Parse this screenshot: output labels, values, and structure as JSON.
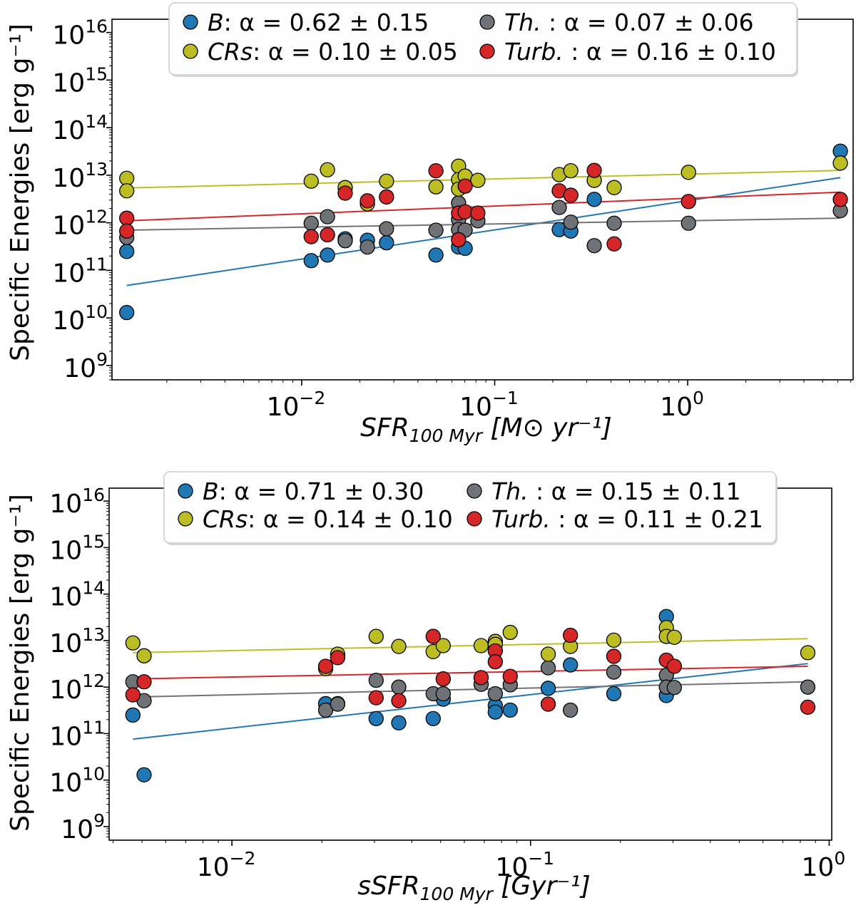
{
  "colors": {
    "B": "#1f77b4",
    "Th": "#6f7378",
    "CRs": "#bcbd22",
    "Turb": "#d62728"
  },
  "chart_data": [
    {
      "type": "scatter",
      "x_scale": "log",
      "y_scale": "log",
      "xlabel": {
        "main": "SFR",
        "subscript": "100 Myr",
        "units": "[M⊙ yr⁻¹]"
      },
      "ylabel": "Specific Energies [erg g⁻¹]",
      "xlim": [
        0.00104,
        7.2
      ],
      "ylim": [
        500000000.0,
        1.9e+16
      ],
      "x_ticks": [
        0.01,
        0.1,
        1
      ],
      "x_tick_labels": [
        {
          "base": "10",
          "exp": "−2"
        },
        {
          "base": "10",
          "exp": "−1"
        },
        {
          "base": "10",
          "exp": "0"
        }
      ],
      "y_ticks": [
        1000000000.0,
        10000000000.0,
        100000000000.0,
        1000000000000.0,
        10000000000000.0,
        100000000000000.0,
        1000000000000000.0,
        1e+16
      ],
      "y_tick_labels": [
        {
          "base": "10",
          "exp": "9"
        },
        {
          "base": "10",
          "exp": "10"
        },
        {
          "base": "10",
          "exp": "11"
        },
        {
          "base": "10",
          "exp": "12"
        },
        {
          "base": "10",
          "exp": "13"
        },
        {
          "base": "10",
          "exp": "14"
        },
        {
          "base": "10",
          "exp": "15"
        },
        {
          "base": "10",
          "exp": "16"
        }
      ],
      "grid": false,
      "legend_position": "top-center",
      "series": [
        {
          "key": "B",
          "name": "B",
          "stats": ": α = 0.62 ± 0.15",
          "x": [
            0.00124,
            0.00124,
            0.0112,
            0.0136,
            0.0168,
            0.0219,
            0.0275,
            0.0496,
            0.065,
            0.0703,
            0.216,
            0.248,
            0.328,
            6.18
          ],
          "y": [
            250000000000.0,
            13000000000.0,
            160000000000.0,
            210000000000.0,
            460000000000.0,
            430000000000.0,
            380000000000.0,
            210000000000.0,
            310000000000.0,
            290000000000.0,
            720000000000.0,
            670000000000.0,
            3100000000000.0,
            32000000000000.0
          ],
          "fit": {
            "x": [
              0.00124,
              6.18
            ],
            "y": [
              48000000000.0,
              8900000000000.0
            ]
          }
        },
        {
          "key": "Th",
          "name": "Th.",
          "stats": " : α = 0.07 ± 0.06",
          "x": [
            0.00124,
            0.0112,
            0.0136,
            0.0168,
            0.0219,
            0.0275,
            0.0496,
            0.065,
            0.065,
            0.065,
            0.0703,
            0.0818,
            0.216,
            0.248,
            0.328,
            0.416,
            1.01,
            6.18
          ],
          "y": [
            490000000000.0,
            980000000000.0,
            1340000000000.0,
            420000000000.0,
            310000000000.0,
            750000000000.0,
            700000000000.0,
            2600000000000.0,
            1170000000000.0,
            720000000000.0,
            700000000000.0,
            1100000000000.0,
            2100000000000.0,
            1030000000000.0,
            330000000000.0,
            980000000000.0,
            980000000000.0,
            1800000000000.0
          ],
          "fit": {
            "x": [
              0.00124,
              6.18
            ],
            "y": [
              700000000000.0,
              1250000000000.0
            ]
          }
        },
        {
          "key": "CRs",
          "name": "CRs",
          "stats": ": α = 0.10 ± 0.05",
          "x": [
            0.00124,
            0.00124,
            0.0112,
            0.0136,
            0.0168,
            0.0219,
            0.0275,
            0.0496,
            0.065,
            0.065,
            0.065,
            0.0703,
            0.0818,
            0.216,
            0.248,
            0.328,
            0.416,
            1.01,
            6.18
          ],
          "y": [
            8600000000000.0,
            4700000000000.0,
            7500000000000.0,
            13000000000000.0,
            5500000000000.0,
            2500000000000.0,
            7500000000000.0,
            5700000000000.0,
            15500000000000.0,
            8100000000000.0,
            5100000000000.0,
            9600000000000.0,
            7800000000000.0,
            10300000000000.0,
            12400000000000.0,
            7800000000000.0,
            5500000000000.0,
            11500000000000.0,
            18000000000000.0
          ],
          "fit": {
            "x": [
              0.00124,
              6.18
            ],
            "y": [
              5400000000000.0,
              12600000000000.0
            ]
          }
        },
        {
          "key": "Turb",
          "name": "Turb.",
          "stats": " : α = 0.16 ± 0.10",
          "x": [
            0.00124,
            0.00124,
            0.0112,
            0.0136,
            0.0168,
            0.0219,
            0.0275,
            0.0496,
            0.065,
            0.065,
            0.0703,
            0.0703,
            0.0818,
            0.216,
            0.248,
            0.328,
            0.416,
            1.01,
            6.18
          ],
          "y": [
            1250000000000.0,
            670000000000.0,
            510000000000.0,
            560000000000.0,
            4200000000000.0,
            2900000000000.0,
            3500000000000.0,
            12400000000000.0,
            1600000000000.0,
            440000000000.0,
            5900000000000.0,
            1700000000000.0,
            1600000000000.0,
            4700000000000.0,
            3800000000000.0,
            12600000000000.0,
            360000000000.0,
            2800000000000.0,
            3100000000000.0
          ],
          "fit": {
            "x": [
              0.00124,
              6.18
            ],
            "y": [
              1100000000000.0,
              4400000000000.0
            ]
          }
        }
      ]
    },
    {
      "type": "scatter",
      "x_scale": "log",
      "y_scale": "log",
      "xlabel": {
        "main": "sSFR",
        "subscript": "100 Myr",
        "units": "[Gyr⁻¹]"
      },
      "ylabel": "Specific Energies [erg g⁻¹]",
      "xlim": [
        0.00388,
        1.02
      ],
      "ylim": [
        510000000.0,
        1.9e+16
      ],
      "x_ticks": [
        0.01,
        0.1,
        1
      ],
      "x_tick_labels": [
        {
          "base": "10",
          "exp": "−2"
        },
        {
          "base": "10",
          "exp": "−1"
        },
        {
          "base": "10",
          "exp": "0"
        }
      ],
      "y_ticks": [
        1000000000.0,
        10000000000.0,
        100000000000.0,
        1000000000000.0,
        10000000000000.0,
        100000000000000.0,
        1000000000000000.0,
        1e+16
      ],
      "y_tick_labels": [
        {
          "base": "10",
          "exp": "9"
        },
        {
          "base": "10",
          "exp": "10"
        },
        {
          "base": "10",
          "exp": "11"
        },
        {
          "base": "10",
          "exp": "12"
        },
        {
          "base": "10",
          "exp": "13"
        },
        {
          "base": "10",
          "exp": "14"
        },
        {
          "base": "10",
          "exp": "15"
        },
        {
          "base": "10",
          "exp": "16"
        }
      ],
      "grid": false,
      "legend_position": "top-center",
      "series": [
        {
          "key": "B",
          "name": "B",
          "stats": ": α = 0.71 ± 0.30",
          "x": [
            0.00466,
            0.00508,
            0.0206,
            0.0226,
            0.0304,
            0.0362,
            0.0472,
            0.051,
            0.0762,
            0.0762,
            0.0855,
            0.1146,
            0.136,
            0.19,
            0.285,
            0.285
          ],
          "y": [
            250000000000.0,
            13000000000.0,
            440000000000.0,
            440000000000.0,
            210000000000.0,
            170000000000.0,
            210000000000.0,
            550000000000.0,
            400000000000.0,
            290000000000.0,
            320000000000.0,
            940000000000.0,
            3000000000000.0,
            720000000000.0,
            33000000000000.0,
            660000000000.0
          ],
          "fit": {
            "x": [
              0.00466,
              0.848
            ],
            "y": [
              76000000000.0,
              3200000000000.0
            ]
          }
        },
        {
          "key": "Th",
          "name": "Th.",
          "stats": " : α = 0.15 ± 0.11",
          "x": [
            0.00466,
            0.00508,
            0.0206,
            0.0226,
            0.0304,
            0.0362,
            0.0472,
            0.051,
            0.0683,
            0.0762,
            0.0855,
            0.1146,
            0.136,
            0.19,
            0.285,
            0.285,
            0.303,
            0.848
          ],
          "y": [
            1300000000000.0,
            510000000000.0,
            320000000000.0,
            430000000000.0,
            1400000000000.0,
            1000000000000.0,
            720000000000.0,
            720000000000.0,
            1150000000000.0,
            720000000000.0,
            1120000000000.0,
            2600000000000.0,
            320000000000.0,
            2100000000000.0,
            1800000000000.0,
            1000000000000.0,
            980000000000.0,
            1000000000000.0
          ],
          "fit": {
            "x": [
              0.00466,
              0.848
            ],
            "y": [
              610000000000.0,
              1300000000000.0
            ]
          }
        },
        {
          "key": "CRs",
          "name": "CRs",
          "stats": ": α = 0.14 ± 0.10",
          "x": [
            0.00466,
            0.00508,
            0.0206,
            0.0226,
            0.0304,
            0.0362,
            0.0472,
            0.051,
            0.0683,
            0.0762,
            0.0762,
            0.0855,
            0.1146,
            0.136,
            0.19,
            0.285,
            0.285,
            0.303,
            0.848
          ],
          "y": [
            8900000000000.0,
            4700000000000.0,
            2500000000000.0,
            5100000000000.0,
            12300000000000.0,
            7500000000000.0,
            5800000000000.0,
            7800000000000.0,
            7800000000000.0,
            9600000000000.0,
            8300000000000.0,
            15000000000000.0,
            5100000000000.0,
            7500000000000.0,
            10200000000000.0,
            19000000000000.0,
            12300000000000.0,
            11800000000000.0,
            5500000000000.0
          ],
          "fit": {
            "x": [
              0.00466,
              0.848
            ],
            "y": [
              5500000000000.0,
              11000000000000.0
            ]
          }
        },
        {
          "key": "Turb",
          "name": "Turb.",
          "stats": " : α = 0.11 ± 0.21",
          "x": [
            0.00466,
            0.00508,
            0.0206,
            0.0226,
            0.0304,
            0.0362,
            0.0472,
            0.051,
            0.0683,
            0.0762,
            0.0762,
            0.0855,
            0.1146,
            0.136,
            0.19,
            0.285,
            0.303,
            0.848
          ],
          "y": [
            680000000000.0,
            1300000000000.0,
            2800000000000.0,
            4300000000000.0,
            590000000000.0,
            510000000000.0,
            12300000000000.0,
            1500000000000.0,
            1600000000000.0,
            6000000000000.0,
            3500000000000.0,
            1700000000000.0,
            430000000000.0,
            13000000000000.0,
            4600000000000.0,
            3800000000000.0,
            2800000000000.0,
            370000000000.0
          ],
          "fit": {
            "x": [
              0.00466,
              0.848
            ],
            "y": [
              1500000000000.0,
              2800000000000.0
            ]
          }
        }
      ]
    }
  ]
}
